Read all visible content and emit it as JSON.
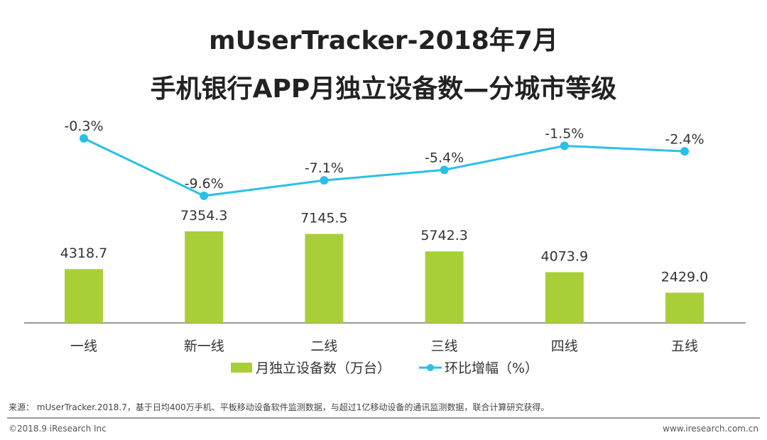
{
  "chart_data": {
    "type": "bar",
    "title": "mUserTracker-2018年7月",
    "subtitle": "手机银行APP月独立设备数—分城市等级",
    "categories": [
      "一线",
      "新一线",
      "二线",
      "三线",
      "四线",
      "五线"
    ],
    "series": [
      {
        "name": "月独立设备数（万台）",
        "type": "bar",
        "color": "#a9cf38",
        "values": [
          4318.7,
          7354.3,
          7145.5,
          5742.3,
          4073.9,
          2429.0
        ],
        "labels": [
          "4318.7",
          "7354.3",
          "7145.5",
          "5742.3",
          "4073.9",
          "2429.0"
        ]
      },
      {
        "name": "环比增幅（%）",
        "type": "line",
        "color": "#29c0e8",
        "values": [
          -0.3,
          -9.6,
          -7.1,
          -5.4,
          -1.5,
          -2.4
        ],
        "labels": [
          "-0.3%",
          "-9.6%",
          "-7.1%",
          "-5.4%",
          "-1.5%",
          "-2.4%"
        ]
      }
    ],
    "legend": "bottom"
  },
  "footer": {
    "source": "来源： mUserTracker.2018.7，基于日均400万手机、平板移动设备软件监测数据，与超过1亿移动设备的通讯监测数据，联合计算研究获得。",
    "copyright": "©2018.9 iResearch Inc",
    "website": "www.iresearch.com.cn"
  }
}
